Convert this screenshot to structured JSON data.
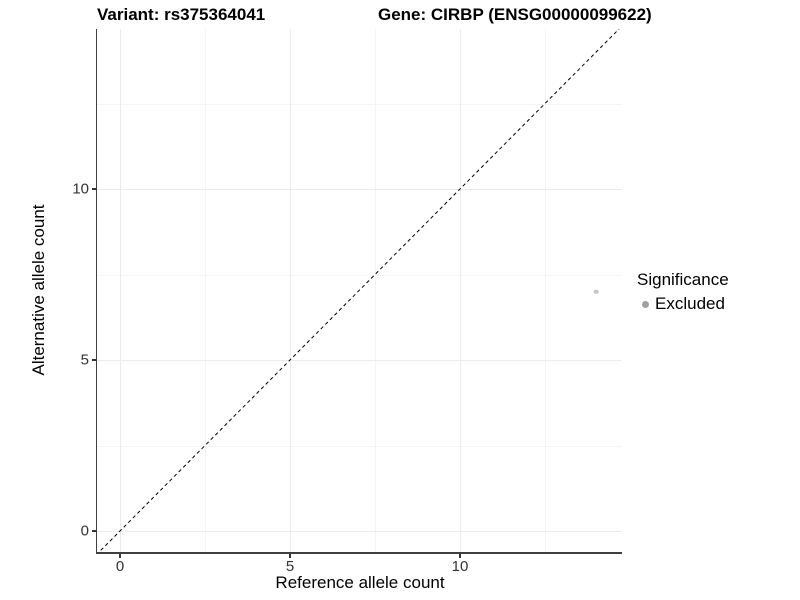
{
  "chart_data": {
    "type": "scatter",
    "title_left": "Variant: rs375364041",
    "title_right": "Gene: CIRBP (ENSG00000099622)",
    "xlabel": "Reference allele count",
    "ylabel": "Alternative allele count",
    "xlim": [
      -0.7,
      14.75
    ],
    "ylim": [
      -0.7,
      14.75
    ],
    "x_ticks": [
      0,
      5,
      10
    ],
    "y_ticks": [
      0,
      5,
      10
    ],
    "x_minor_ticks": [
      2.5,
      7.5,
      12.5
    ],
    "y_minor_ticks": [
      2.5,
      7.5,
      12.5
    ],
    "grid": "major and minor, light grey on white",
    "identity_line": {
      "style": "dashed",
      "color": "#000000",
      "from": [
        -0.7,
        -0.7
      ],
      "to": [
        14.75,
        14.75
      ]
    },
    "series": [
      {
        "name": "Excluded",
        "point_color": "#c6c6c6",
        "points": [
          {
            "x": 14,
            "y": 7
          }
        ]
      }
    ],
    "legend": {
      "title": "Significance",
      "position": "right",
      "entries": [
        {
          "label": "Excluded",
          "color": "#a0a0a0"
        }
      ]
    },
    "colors": {
      "grid_major": "#ebebeb",
      "grid_minor": "#f4f4f4",
      "axis_line": "#3f3f3f",
      "tick_text": "#333333"
    }
  }
}
